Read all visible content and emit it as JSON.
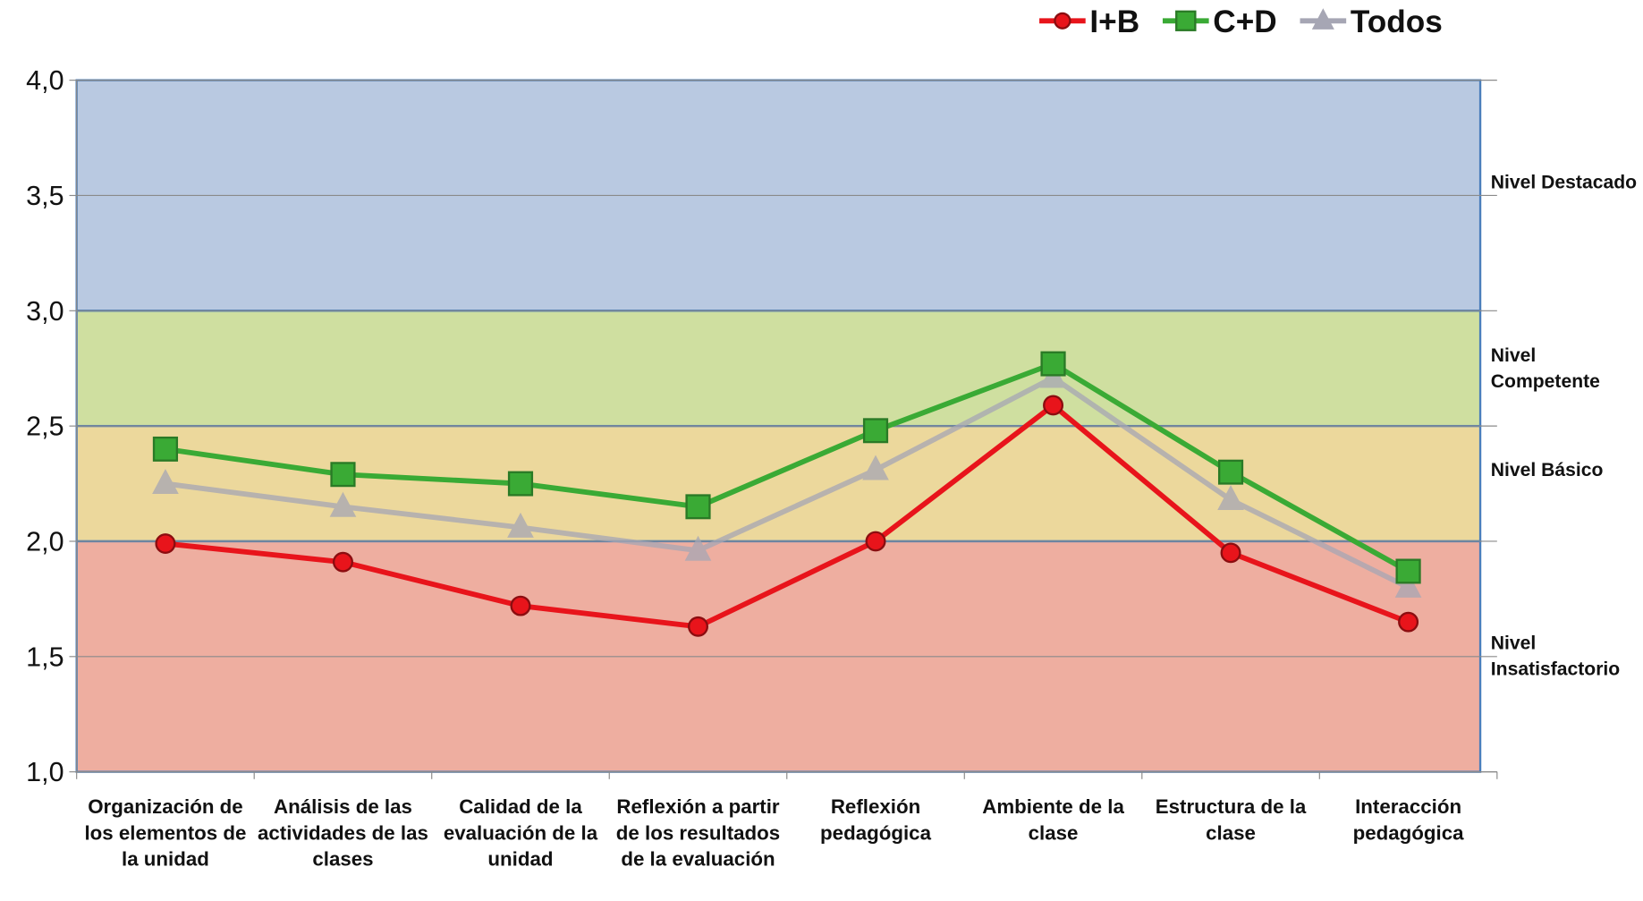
{
  "chart_data": {
    "type": "line",
    "categories": [
      "Organización de los elementos de la unidad",
      "Análisis de las actividades de las clases",
      "Calidad de la evaluación de la unidad",
      "Reflexión a partir de los resultados de la evaluación",
      "Reflexión pedagógica",
      "Ambiente de la clase",
      "Estructura de la clase",
      "Interacción pedagógica"
    ],
    "series": [
      {
        "name": "I+B",
        "color": "#e8141b",
        "marker": "circle",
        "values": [
          1.99,
          1.91,
          1.72,
          1.63,
          2.0,
          2.59,
          1.95,
          1.65
        ]
      },
      {
        "name": "Todos",
        "color": "#a6a6b4",
        "marker": "triangle",
        "values": [
          2.25,
          2.15,
          2.06,
          1.96,
          2.31,
          2.71,
          2.18,
          1.8
        ]
      },
      {
        "name": "C+D",
        "color": "#3aaa35",
        "marker": "square",
        "values": [
          2.4,
          2.29,
          2.25,
          2.15,
          2.48,
          2.77,
          2.3,
          1.87
        ]
      }
    ],
    "legend_order": [
      0,
      2,
      1
    ],
    "bands": [
      {
        "name": "Nivel Destacado",
        "from": 3,
        "to": 4,
        "color": "#b9c9e1"
      },
      {
        "name": "Nivel Competente",
        "from": 2.5,
        "to": 3,
        "color": "#cfdfa0"
      },
      {
        "name": "Nivel Básico",
        "from": 2,
        "to": 2.5,
        "color": "#ecd89c"
      },
      {
        "name": "Nivel Insatisfactorio",
        "from": 1,
        "to": 2,
        "color": "#eeaea0"
      }
    ],
    "ylim": [
      1,
      4
    ],
    "yticks": [
      {
        "value": 1,
        "label": "1,0"
      },
      {
        "value": 1.5,
        "label": "1,5"
      },
      {
        "value": 2,
        "label": "2,0"
      },
      {
        "value": 2.5,
        "label": "2,5"
      },
      {
        "value": 3,
        "label": "3,0"
      },
      {
        "value": 3.5,
        "label": "3,5"
      },
      {
        "value": 4,
        "label": "4,0"
      }
    ],
    "grid": true,
    "legend": "top-right"
  }
}
